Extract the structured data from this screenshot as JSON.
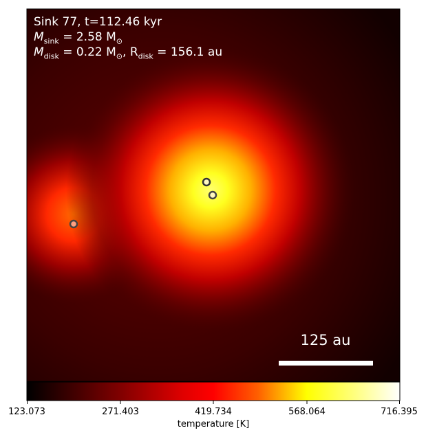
{
  "annotation": {
    "line1": "Sink 77, t=112.46 kyr",
    "msink_symbol": "M",
    "msink_sub": "sink",
    "msink_value": " = 2.58 M",
    "msink_unit_sub": "⊙",
    "mdisk_symbol": "M",
    "mdisk_sub": "disk",
    "mdisk_value": " = 0.22 M",
    "mdisk_unit_sub": "⊙",
    "rdisk_symbol": ", R",
    "rdisk_sub": "disk",
    "rdisk_value": " = 156.1 au"
  },
  "scale_bar": {
    "label": "125 au"
  },
  "colorbar": {
    "label": "temperature [K]",
    "ticks": [
      "123.073",
      "271.403",
      "419.734",
      "568.064",
      "716.395"
    ],
    "colormap": "afmhot"
  },
  "colors": {
    "hot_core": "#ffff40",
    "mid": "#ff2000",
    "background": "#2a0000",
    "sink_marker_edge": "#333333"
  }
}
